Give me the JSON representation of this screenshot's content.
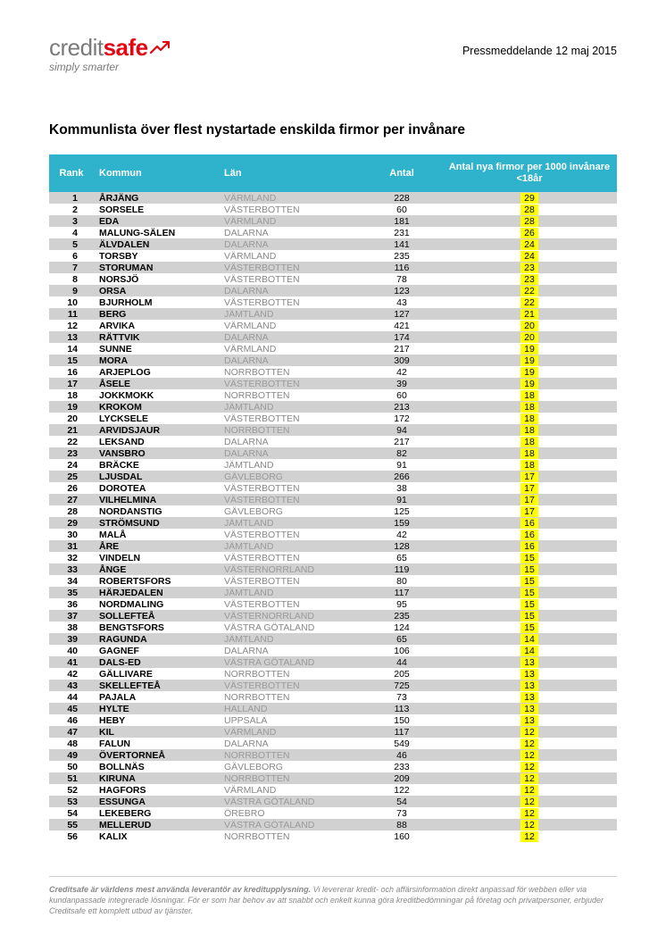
{
  "header": {
    "logo_credit": "credit",
    "logo_safe": "safe",
    "logo_tag": "simply smarter",
    "press_date": "Pressmeddelande 12 maj 2015"
  },
  "title": "Kommunlista över flest nystartade enskilda firmor per invånare",
  "table": {
    "header_bg": "#2fb3cc",
    "row_odd_bg": "#d1d1d1",
    "row_even_bg": "#ffffff",
    "highlight_bg": "#ffff00",
    "columns": {
      "rank": "Rank",
      "kommun": "Kommun",
      "lan": "Län",
      "antal": "Antal",
      "ratio": "Antal nya firmor per 1000 invånare <18år"
    },
    "rows": [
      {
        "rank": 1,
        "kommun": "ÅRJÄNG",
        "lan": "VÄRMLAND",
        "antal": 228,
        "ratio": 29
      },
      {
        "rank": 2,
        "kommun": "SORSELE",
        "lan": "VÄSTERBOTTEN",
        "antal": 60,
        "ratio": 28
      },
      {
        "rank": 3,
        "kommun": "EDA",
        "lan": "VÄRMLAND",
        "antal": 181,
        "ratio": 28
      },
      {
        "rank": 4,
        "kommun": "MALUNG-SÄLEN",
        "lan": "DALARNA",
        "antal": 231,
        "ratio": 26
      },
      {
        "rank": 5,
        "kommun": "ÄLVDALEN",
        "lan": "DALARNA",
        "antal": 141,
        "ratio": 24
      },
      {
        "rank": 6,
        "kommun": "TORSBY",
        "lan": "VÄRMLAND",
        "antal": 235,
        "ratio": 24
      },
      {
        "rank": 7,
        "kommun": "STORUMAN",
        "lan": "VÄSTERBOTTEN",
        "antal": 116,
        "ratio": 23
      },
      {
        "rank": 8,
        "kommun": "NORSJÖ",
        "lan": "VÄSTERBOTTEN",
        "antal": 78,
        "ratio": 23
      },
      {
        "rank": 9,
        "kommun": "ORSA",
        "lan": "DALARNA",
        "antal": 123,
        "ratio": 22
      },
      {
        "rank": 10,
        "kommun": "BJURHOLM",
        "lan": "VÄSTERBOTTEN",
        "antal": 43,
        "ratio": 22
      },
      {
        "rank": 11,
        "kommun": "BERG",
        "lan": "JÄMTLAND",
        "antal": 127,
        "ratio": 21
      },
      {
        "rank": 12,
        "kommun": "ARVIKA",
        "lan": "VÄRMLAND",
        "antal": 421,
        "ratio": 20
      },
      {
        "rank": 13,
        "kommun": "RÄTTVIK",
        "lan": "DALARNA",
        "antal": 174,
        "ratio": 20
      },
      {
        "rank": 14,
        "kommun": "SUNNE",
        "lan": "VÄRMLAND",
        "antal": 217,
        "ratio": 19
      },
      {
        "rank": 15,
        "kommun": "MORA",
        "lan": "DALARNA",
        "antal": 309,
        "ratio": 19
      },
      {
        "rank": 16,
        "kommun": "ARJEPLOG",
        "lan": "NORRBOTTEN",
        "antal": 42,
        "ratio": 19
      },
      {
        "rank": 17,
        "kommun": "ÅSELE",
        "lan": "VÄSTERBOTTEN",
        "antal": 39,
        "ratio": 19
      },
      {
        "rank": 18,
        "kommun": "JOKKMOKK",
        "lan": "NORRBOTTEN",
        "antal": 60,
        "ratio": 18
      },
      {
        "rank": 19,
        "kommun": "KROKOM",
        "lan": "JÄMTLAND",
        "antal": 213,
        "ratio": 18
      },
      {
        "rank": 20,
        "kommun": "LYCKSELE",
        "lan": "VÄSTERBOTTEN",
        "antal": 172,
        "ratio": 18
      },
      {
        "rank": 21,
        "kommun": "ARVIDSJAUR",
        "lan": "NORRBOTTEN",
        "antal": 94,
        "ratio": 18
      },
      {
        "rank": 22,
        "kommun": "LEKSAND",
        "lan": "DALARNA",
        "antal": 217,
        "ratio": 18
      },
      {
        "rank": 23,
        "kommun": "VANSBRO",
        "lan": "DALARNA",
        "antal": 82,
        "ratio": 18
      },
      {
        "rank": 24,
        "kommun": "BRÄCKE",
        "lan": "JÄMTLAND",
        "antal": 91,
        "ratio": 18
      },
      {
        "rank": 25,
        "kommun": "LJUSDAL",
        "lan": "GÄVLEBORG",
        "antal": 266,
        "ratio": 17
      },
      {
        "rank": 26,
        "kommun": "DOROTEA",
        "lan": "VÄSTERBOTTEN",
        "antal": 38,
        "ratio": 17
      },
      {
        "rank": 27,
        "kommun": "VILHELMINA",
        "lan": "VÄSTERBOTTEN",
        "antal": 91,
        "ratio": 17
      },
      {
        "rank": 28,
        "kommun": "NORDANSTIG",
        "lan": "GÄVLEBORG",
        "antal": 125,
        "ratio": 17
      },
      {
        "rank": 29,
        "kommun": "STRÖMSUND",
        "lan": "JÄMTLAND",
        "antal": 159,
        "ratio": 16
      },
      {
        "rank": 30,
        "kommun": "MALÅ",
        "lan": "VÄSTERBOTTEN",
        "antal": 42,
        "ratio": 16
      },
      {
        "rank": 31,
        "kommun": "ÅRE",
        "lan": "JÄMTLAND",
        "antal": 128,
        "ratio": 16
      },
      {
        "rank": 32,
        "kommun": "VINDELN",
        "lan": "VÄSTERBOTTEN",
        "antal": 65,
        "ratio": 15
      },
      {
        "rank": 33,
        "kommun": "ÅNGE",
        "lan": "VÄSTERNORRLAND",
        "antal": 119,
        "ratio": 15
      },
      {
        "rank": 34,
        "kommun": "ROBERTSFORS",
        "lan": "VÄSTERBOTTEN",
        "antal": 80,
        "ratio": 15
      },
      {
        "rank": 35,
        "kommun": "HÄRJEDALEN",
        "lan": "JÄMTLAND",
        "antal": 117,
        "ratio": 15
      },
      {
        "rank": 36,
        "kommun": "NORDMALING",
        "lan": "VÄSTERBOTTEN",
        "antal": 95,
        "ratio": 15
      },
      {
        "rank": 37,
        "kommun": "SOLLEFTEÅ",
        "lan": "VÄSTERNORRLAND",
        "antal": 235,
        "ratio": 15
      },
      {
        "rank": 38,
        "kommun": "BENGTSFORS",
        "lan": "VÄSTRA GÖTALAND",
        "antal": 124,
        "ratio": 15
      },
      {
        "rank": 39,
        "kommun": "RAGUNDA",
        "lan": "JÄMTLAND",
        "antal": 65,
        "ratio": 14
      },
      {
        "rank": 40,
        "kommun": "GAGNEF",
        "lan": "DALARNA",
        "antal": 106,
        "ratio": 14
      },
      {
        "rank": 41,
        "kommun": "DALS-ED",
        "lan": "VÄSTRA GÖTALAND",
        "antal": 44,
        "ratio": 13
      },
      {
        "rank": 42,
        "kommun": "GÄLLIVARE",
        "lan": "NORRBOTTEN",
        "antal": 205,
        "ratio": 13
      },
      {
        "rank": 43,
        "kommun": "SKELLEFTEÅ",
        "lan": "VÄSTERBOTTEN",
        "antal": 725,
        "ratio": 13
      },
      {
        "rank": 44,
        "kommun": "PAJALA",
        "lan": "NORRBOTTEN",
        "antal": 73,
        "ratio": 13
      },
      {
        "rank": 45,
        "kommun": "HYLTE",
        "lan": "HALLAND",
        "antal": 113,
        "ratio": 13
      },
      {
        "rank": 46,
        "kommun": "HEBY",
        "lan": "UPPSALA",
        "antal": 150,
        "ratio": 13
      },
      {
        "rank": 47,
        "kommun": "KIL",
        "lan": "VÄRMLAND",
        "antal": 117,
        "ratio": 12
      },
      {
        "rank": 48,
        "kommun": "FALUN",
        "lan": "DALARNA",
        "antal": 549,
        "ratio": 12
      },
      {
        "rank": 49,
        "kommun": "ÖVERTORNEÅ",
        "lan": "NORRBOTTEN",
        "antal": 46,
        "ratio": 12
      },
      {
        "rank": 50,
        "kommun": "BOLLNÄS",
        "lan": "GÄVLEBORG",
        "antal": 233,
        "ratio": 12
      },
      {
        "rank": 51,
        "kommun": "KIRUNA",
        "lan": "NORRBOTTEN",
        "antal": 209,
        "ratio": 12
      },
      {
        "rank": 52,
        "kommun": "HAGFORS",
        "lan": "VÄRMLAND",
        "antal": 122,
        "ratio": 12
      },
      {
        "rank": 53,
        "kommun": "ESSUNGA",
        "lan": "VÄSTRA GÖTALAND",
        "antal": 54,
        "ratio": 12
      },
      {
        "rank": 54,
        "kommun": "LEKEBERG",
        "lan": "ÖREBRO",
        "antal": 73,
        "ratio": 12
      },
      {
        "rank": 55,
        "kommun": "MELLERUD",
        "lan": "VÄSTRA GÖTALAND",
        "antal": 88,
        "ratio": 12
      },
      {
        "rank": 56,
        "kommun": "KALIX",
        "lan": "NORRBOTTEN",
        "antal": 160,
        "ratio": 12
      }
    ]
  },
  "footer": {
    "bold_lead": "Creditsafe är världens mest använda leverantör av kreditupplysning.",
    "rest": " Vi levererar kredit- och affärsinformation direkt anpassad för webben eller via kundanpassade integrerade lösningar. För er som har behov av att snabbt och enkelt kunna göra kreditbedömningar på företag och privatpersoner, erbjuder Creditsafe ett komplett utbud av tjänster."
  }
}
